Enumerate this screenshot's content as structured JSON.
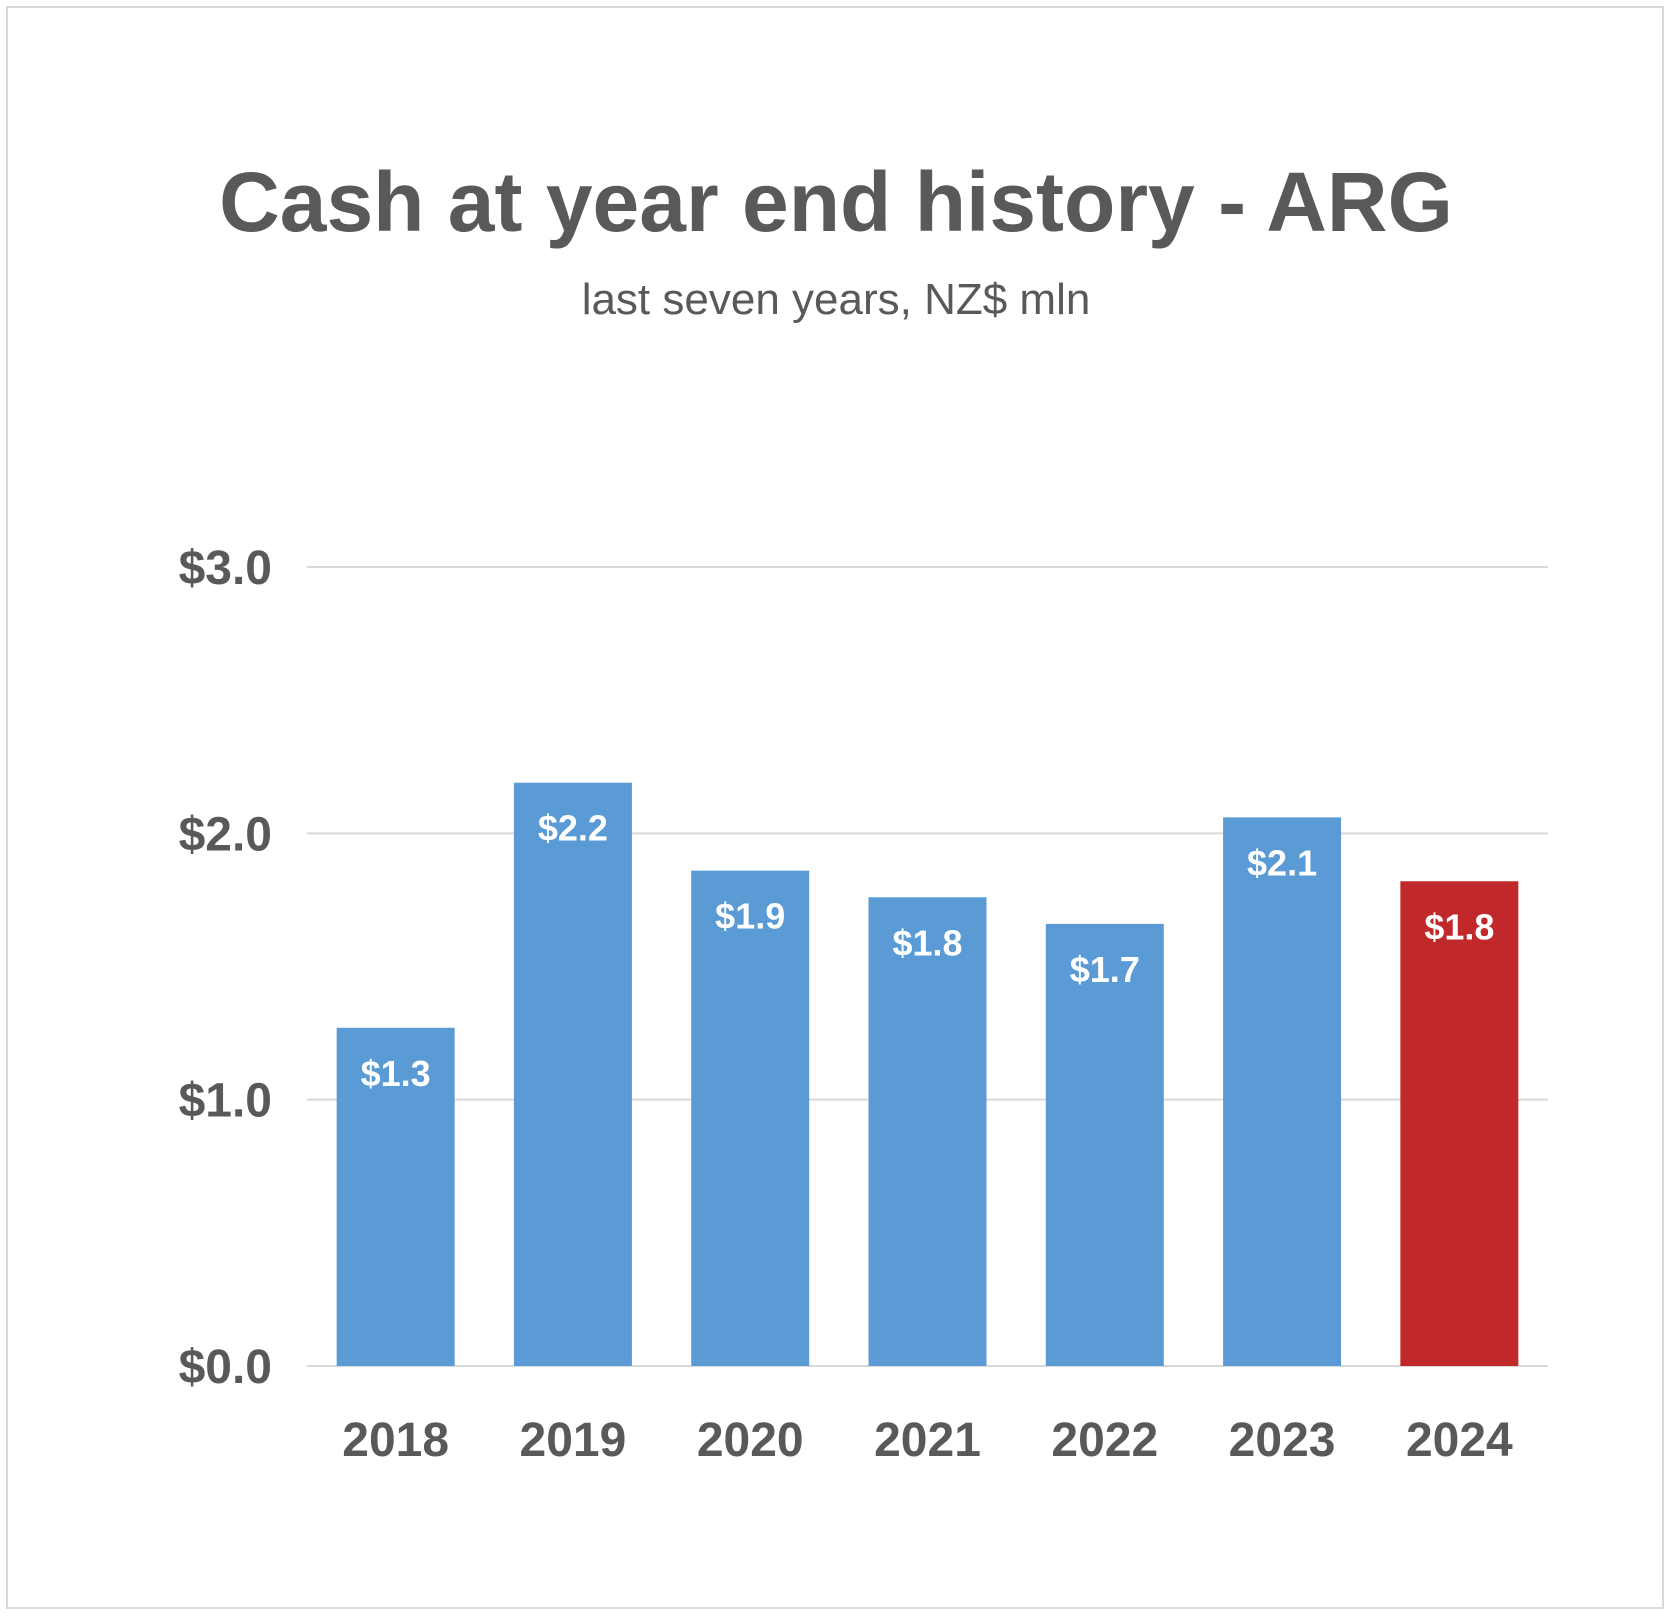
{
  "chart_data": {
    "type": "bar",
    "title": "Cash at year end history - ARG",
    "subtitle": "last seven years, NZ$ mln",
    "categories": [
      "2018",
      "2019",
      "2020",
      "2021",
      "2022",
      "2023",
      "2024"
    ],
    "values": [
      1.27,
      2.19,
      1.86,
      1.76,
      1.66,
      2.06,
      1.82
    ],
    "data_labels": [
      "$1.3",
      "$2.2",
      "$1.9",
      "$1.8",
      "$1.7",
      "$2.1",
      "$1.8"
    ],
    "y_ticks": [
      0,
      1,
      2,
      3
    ],
    "y_tick_labels": [
      "$0.0",
      "$1.0",
      "$2.0",
      "$3.0"
    ],
    "ylim": [
      0,
      3
    ],
    "grid": true,
    "legend": "none",
    "colors": {
      "default_bar": "#5b9bd5",
      "highlight_bar": "#c0282a",
      "gridline": "#d9d9d9",
      "text": "#595959"
    },
    "highlight_category": "2024"
  }
}
